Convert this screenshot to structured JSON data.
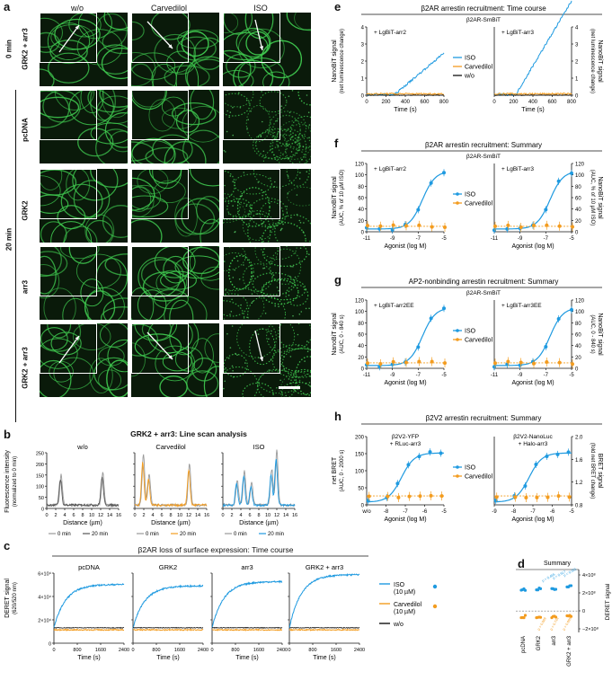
{
  "panels": {
    "a": {
      "label": "a",
      "columns": [
        "w/o",
        "Carvedilol",
        "ISO"
      ],
      "row_groups": [
        "0 min",
        "20 min"
      ],
      "rows": [
        "GRK2 + arr3",
        "pcDNA",
        "GRK2",
        "arr3",
        "GRK2 + arr3"
      ]
    },
    "b": {
      "label": "b",
      "title": "GRK2 + arr3: Line scan analysis",
      "ylabel": "Fluorescence intensity",
      "ylabel2": "(normalized to 0 min)",
      "xlabel": "Distance (µm)",
      "subplots": [
        "w/o",
        "Carvedilol",
        "ISO"
      ],
      "legend": [
        "0 min",
        "20 min"
      ],
      "yticks": [
        "0",
        "50",
        "100",
        "150",
        "200",
        "250"
      ],
      "xticks": [
        "0",
        "2",
        "4",
        "6",
        "8",
        "10",
        "12",
        "14",
        "16"
      ]
    },
    "c": {
      "label": "c",
      "title": "β2AR loss of surface expression: Time course",
      "ylabel": "DERET signal",
      "ylabel2": "(620/520 nm)",
      "xlabel": "Time (s)",
      "subplots": [
        "pcDNA",
        "GRK2",
        "arr3",
        "GRK2 + arr3"
      ],
      "yticks": [
        "0",
        "2×10⁴",
        "4×10⁴",
        "6×10⁴"
      ],
      "xticks": [
        "0",
        "800",
        "1600",
        "2400"
      ],
      "legend": [
        {
          "name": "ISO",
          "sub": "(10 µM)",
          "color": "#1f9ae0"
        },
        {
          "name": "Carvedilol",
          "sub": "(10 µM)",
          "color": "#f39c1f"
        },
        {
          "name": "w/o",
          "sub": "",
          "color": "#111111"
        }
      ]
    },
    "d": {
      "label": "d",
      "title": "Summary",
      "ylabel": "DERET signal",
      "ylabel2": "(AUC)",
      "yticks": [
        "4×10⁸",
        "2×10⁸",
        "0",
        "−2×10⁸"
      ],
      "categories": [
        "pcDNA",
        "GRK2",
        "arr3",
        "GRK2 + arr3"
      ],
      "pvals_iso": [
        "p = 0.465",
        "p = 0.917",
        "p < 0.001"
      ],
      "pvals_carv": [
        "p = 0.889",
        "p = 0.744",
        "p = 0.699"
      ]
    },
    "e": {
      "label": "e",
      "title": "β2AR arrestin recruitment: Time course",
      "box": "β2AR-SmBiT",
      "subplots": [
        "+ LgBiT-arr2",
        "+ LgBiT-arr3"
      ],
      "ylabel": "NanoBiT signal",
      "ylabel2": "(net luminescence change)",
      "xlabel": "Time (s)",
      "xticks": [
        "0",
        "200",
        "400",
        "600",
        "800"
      ],
      "yticks": [
        "0",
        "1",
        "2",
        "3",
        "4"
      ],
      "legend": [
        "ISO",
        "Carvedilol",
        "w/o"
      ]
    },
    "f": {
      "label": "f",
      "title": "β2AR arrestin recruitment: Summary",
      "box": "β2AR-SmBiT",
      "subplots": [
        "+ LgBiT-arr2",
        "+ LgBiT-arr3"
      ],
      "ylabel": "NanoBiT signal",
      "ylabel2": "(AUC, % of 10 µM ISO)",
      "xlabel": "Agonist (log M)",
      "xticks": [
        "-11",
        "-9",
        "-7",
        "-5"
      ],
      "yticks": [
        "0",
        "20",
        "40",
        "60",
        "80",
        "100",
        "120"
      ],
      "legend": [
        "ISO",
        "Carvedilol"
      ]
    },
    "g": {
      "label": "g",
      "title": "AP2-nonbinding arrestin recruitment: Summary",
      "box": "β2AR-SmBiT",
      "subplots": [
        "+ LgBiT-arr2EE",
        "+ LgBiT-arr3EE"
      ],
      "ylabel": "NanoBiT signal",
      "ylabel2": "(AUC, 0 - 840 s)",
      "xlabel": "Agonist (log M)",
      "xticks": [
        "-11",
        "-9",
        "-7",
        "-5"
      ],
      "yticks": [
        "0",
        "20",
        "40",
        "60",
        "80",
        "100",
        "120"
      ],
      "legend": [
        "ISO",
        "Carvedilol"
      ]
    },
    "h": {
      "label": "h",
      "title": "β2V2 arrestin recruitment: Summary",
      "subplots": [
        "β2V2-YFP + RLuc-arr3",
        "β2V2-NanoLuc + Halo-arr3"
      ],
      "ylabel": "net BRET",
      "ylabel_l2": "(AUC, 0 - 2000 s)",
      "ylabel_r": "BRET signal",
      "ylabel_r2": "(fold net BRET change)",
      "xlabel": "Agonist (log M)",
      "xticks_left": [
        "w/o",
        "-8",
        "-7",
        "-6",
        "-5"
      ],
      "xticks_right": [
        "-9",
        "-8",
        "-7",
        "-6",
        "-5"
      ],
      "yticks_left": [
        "0",
        "50",
        "100",
        "150",
        "200"
      ],
      "yticks_right": [
        "0.8",
        "1.2",
        "1.6",
        "2.0"
      ],
      "legend": [
        "ISO",
        "Carvedilol"
      ]
    }
  },
  "colors": {
    "iso": "#1f9ae0",
    "carv": "#f39c1f",
    "wo": "#111111",
    "gray": "#999999",
    "dark": "#555555"
  }
}
